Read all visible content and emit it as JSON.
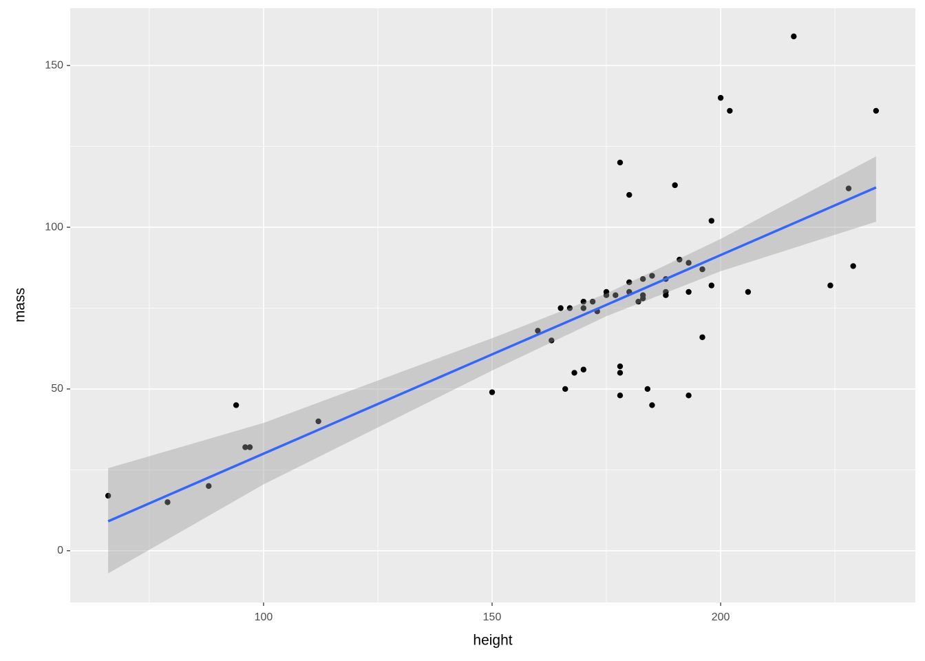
{
  "chart_data": {
    "type": "scatter",
    "x_label": "height",
    "y_label": "mass",
    "x": [
      66,
      79,
      88,
      94,
      96,
      97,
      112,
      150,
      160,
      163,
      165,
      166,
      167,
      168,
      170,
      170,
      170,
      172,
      173,
      175,
      175,
      177,
      178,
      178,
      178,
      178,
      180,
      180,
      180,
      182,
      183,
      183,
      183,
      184,
      185,
      185,
      188,
      188,
      188,
      190,
      191,
      193,
      193,
      193,
      196,
      196,
      198,
      198,
      200,
      202,
      206,
      216,
      224,
      228,
      229,
      234
    ],
    "values": [
      17,
      15,
      20,
      45,
      32,
      32,
      40,
      49,
      68,
      65,
      75,
      50,
      75,
      55,
      77,
      75,
      56,
      77,
      74,
      80,
      79,
      79,
      120,
      57,
      55,
      48,
      83,
      80,
      110,
      77,
      84,
      79,
      78,
      50,
      85,
      45,
      84,
      80,
      79,
      113,
      90,
      89,
      80,
      48,
      87,
      66,
      102,
      82,
      140,
      136,
      80,
      159,
      82,
      112,
      88,
      136
    ],
    "color": "#000000",
    "smooth": {
      "x": [
        66,
        100,
        150,
        175,
        200,
        234
      ],
      "values": [
        9.1,
        30.0,
        60.7,
        76.0,
        91.4,
        112.3
      ],
      "lower": [
        -7.0,
        20.5,
        55.7,
        72.5,
        86.4,
        101.7
      ],
      "upper": [
        25.5,
        39.5,
        65.7,
        79.5,
        96.4,
        121.9
      ],
      "color": "#3366FF",
      "fill": "#999999"
    },
    "xlim": [
      57.7,
      242.6
    ],
    "ylim": [
      -16.0,
      167.7
    ],
    "xticks": [
      100,
      150,
      200
    ],
    "yticks": [
      0,
      50,
      100,
      150
    ],
    "minor_xticks": [
      75,
      125,
      175,
      225
    ],
    "minor_yticks": [
      25,
      75,
      125
    ],
    "grid": true
  }
}
